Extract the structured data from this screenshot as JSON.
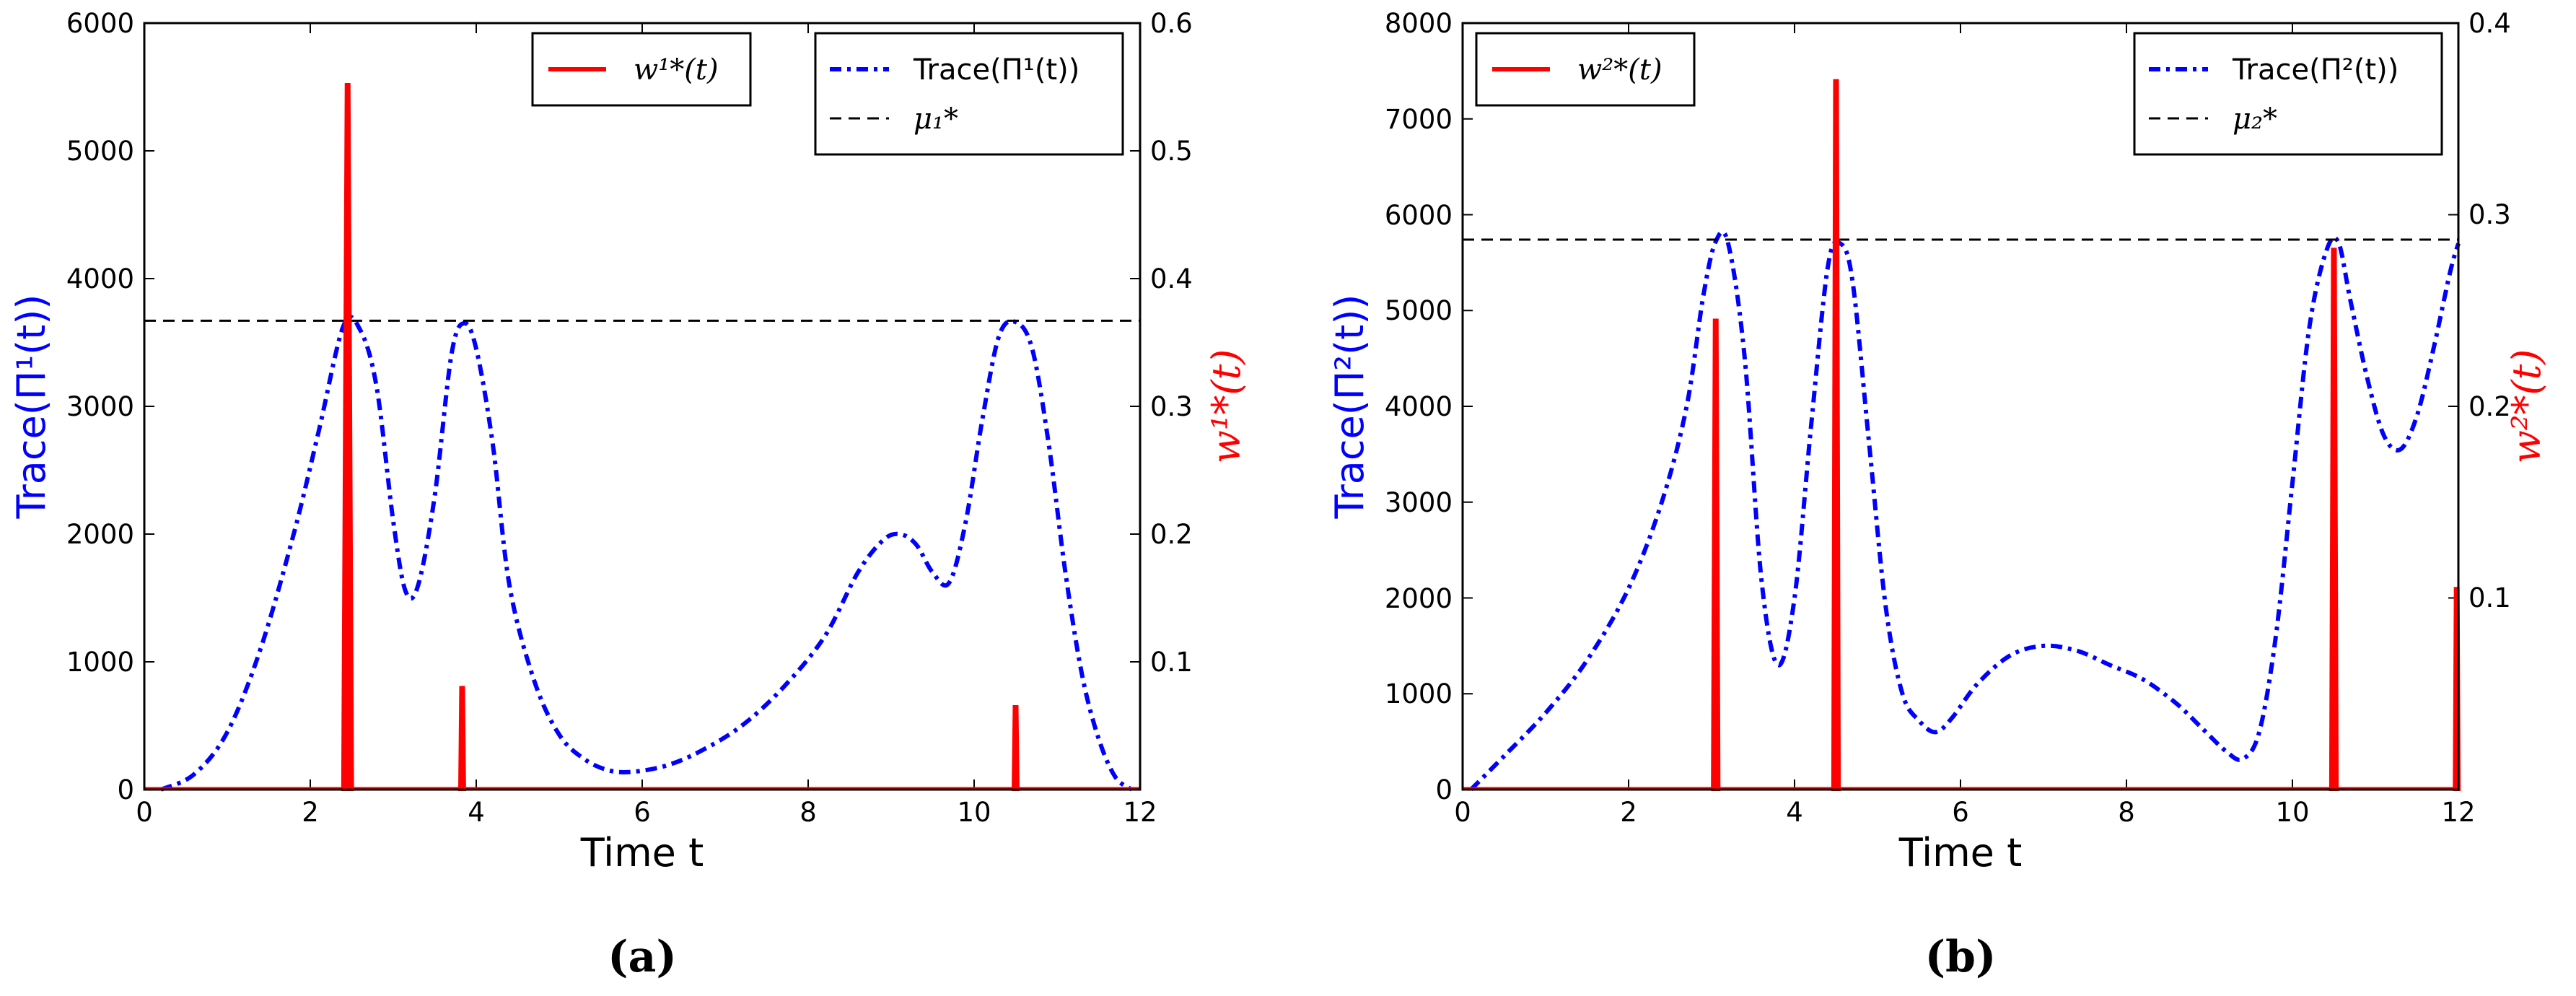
{
  "chart_data": [
    {
      "type": "line",
      "caption": "(a)",
      "xlabel": "Time t",
      "ylabel_left": "Trace(Π¹(t))",
      "ylabel_right": "w¹*(t)",
      "xlim": [
        0,
        12
      ],
      "ylim_left": [
        0,
        6000
      ],
      "ylim_right": [
        0,
        0.6
      ],
      "xticks": [
        0,
        2,
        4,
        6,
        8,
        10,
        12
      ],
      "yticks_left": [
        0,
        1000,
        2000,
        3000,
        4000,
        5000,
        6000
      ],
      "yticks_right": [
        0.1,
        0.2,
        0.3,
        0.4,
        0.5,
        0.6
      ],
      "grid": false,
      "legend_left": {
        "position": "top-center",
        "entries": [
          "w¹*(t)"
        ]
      },
      "legend_right": {
        "position": "top-right",
        "entries": [
          "Trace(Π¹(t))",
          "μ₁*"
        ]
      },
      "series": [
        {
          "name": "Trace(Π¹(t))",
          "axis": "left",
          "style": "dashdot",
          "color": "#0000ff",
          "x": [
            0.2,
            0.6,
            1.0,
            1.4,
            1.8,
            2.1,
            2.4,
            2.6,
            2.8,
            3.0,
            3.15,
            3.3,
            3.5,
            3.7,
            3.85,
            4.0,
            4.2,
            4.4,
            4.7,
            5.0,
            5.3,
            5.6,
            5.9,
            6.3,
            6.7,
            7.2,
            7.7,
            8.2,
            8.6,
            8.9,
            9.1,
            9.3,
            9.5,
            9.7,
            9.9,
            10.1,
            10.3,
            10.5,
            10.7,
            10.9,
            11.1,
            11.3,
            11.5,
            11.7,
            11.9
          ],
          "y": [
            0,
            120,
            450,
            1100,
            2000,
            2800,
            3630,
            3600,
            3150,
            2100,
            1550,
            1600,
            2300,
            3400,
            3650,
            3450,
            2700,
            1600,
            850,
            430,
            240,
            150,
            140,
            190,
            300,
            500,
            800,
            1200,
            1700,
            1950,
            2000,
            1920,
            1700,
            1620,
            2100,
            2900,
            3550,
            3660,
            3450,
            2700,
            1700,
            900,
            400,
            100,
            0
          ]
        },
        {
          "name": "μ₁*",
          "axis": "left",
          "style": "dashed",
          "color": "#000000",
          "value": 3670
        },
        {
          "name": "w¹*(t)",
          "axis": "right",
          "style": "solid",
          "color": "#ff0000",
          "spikes": [
            {
              "t": 2.45,
              "value": 0.552,
              "width": 0.12
            },
            {
              "t": 3.83,
              "value": 0.08,
              "width": 0.06
            },
            {
              "t": 10.5,
              "value": 0.065,
              "width": 0.06
            }
          ]
        }
      ]
    },
    {
      "type": "line",
      "caption": "(b)",
      "xlabel": "Time t",
      "ylabel_left": "Trace(Π²(t))",
      "ylabel_right": "w²*(t)",
      "xlim": [
        0,
        12
      ],
      "ylim_left": [
        0,
        8000
      ],
      "ylim_right": [
        0,
        0.4
      ],
      "xticks": [
        0,
        2,
        4,
        6,
        8,
        10,
        12
      ],
      "yticks_left": [
        0,
        1000,
        2000,
        3000,
        4000,
        5000,
        6000,
        7000,
        8000
      ],
      "yticks_right": [
        0.1,
        0.2,
        0.3,
        0.4
      ],
      "grid": false,
      "legend_left": {
        "position": "top-left",
        "entries": [
          "w²*(t)"
        ]
      },
      "legend_right": {
        "position": "top-right",
        "entries": [
          "Trace(Π²(t))",
          "μ₂*"
        ]
      },
      "series": [
        {
          "name": "Trace(Π²(t))",
          "axis": "left",
          "style": "dashdot",
          "color": "#0000ff",
          "x": [
            0.1,
            0.5,
            1.0,
            1.5,
            2.0,
            2.4,
            2.7,
            2.9,
            3.05,
            3.2,
            3.4,
            3.6,
            3.8,
            4.0,
            4.2,
            4.4,
            4.55,
            4.7,
            4.9,
            5.1,
            5.3,
            5.5,
            5.7,
            5.9,
            6.2,
            6.6,
            7.0,
            7.4,
            7.8,
            8.2,
            8.6,
            8.9,
            9.2,
            9.4,
            9.6,
            9.8,
            10.0,
            10.2,
            10.4,
            10.55,
            10.7,
            10.9,
            11.1,
            11.3,
            11.5,
            11.7,
            11.9,
            12.0
          ],
          "y": [
            0,
            350,
            800,
            1350,
            2100,
            3000,
            4000,
            5150,
            5720,
            5700,
            4500,
            2200,
            1300,
            2000,
            3800,
            5450,
            5700,
            5300,
            3600,
            1900,
            1000,
            720,
            600,
            750,
            1100,
            1400,
            1500,
            1450,
            1300,
            1150,
            900,
            650,
            400,
            320,
            600,
            1600,
            3200,
            4800,
            5600,
            5720,
            5100,
            4300,
            3700,
            3550,
            3900,
            4600,
            5400,
            5700
          ]
        },
        {
          "name": "μ₂*",
          "axis": "left",
          "style": "dashed",
          "color": "#000000",
          "value": 5740
        },
        {
          "name": "w²*(t)",
          "axis": "right",
          "style": "solid",
          "color": "#ff0000",
          "spikes": [
            {
              "t": 3.05,
              "value": 0.245,
              "width": 0.08
            },
            {
              "t": 4.5,
              "value": 0.37,
              "width": 0.08
            },
            {
              "t": 10.5,
              "value": 0.282,
              "width": 0.08
            },
            {
              "t": 11.98,
              "value": 0.105,
              "width": 0.06
            }
          ]
        }
      ]
    }
  ]
}
